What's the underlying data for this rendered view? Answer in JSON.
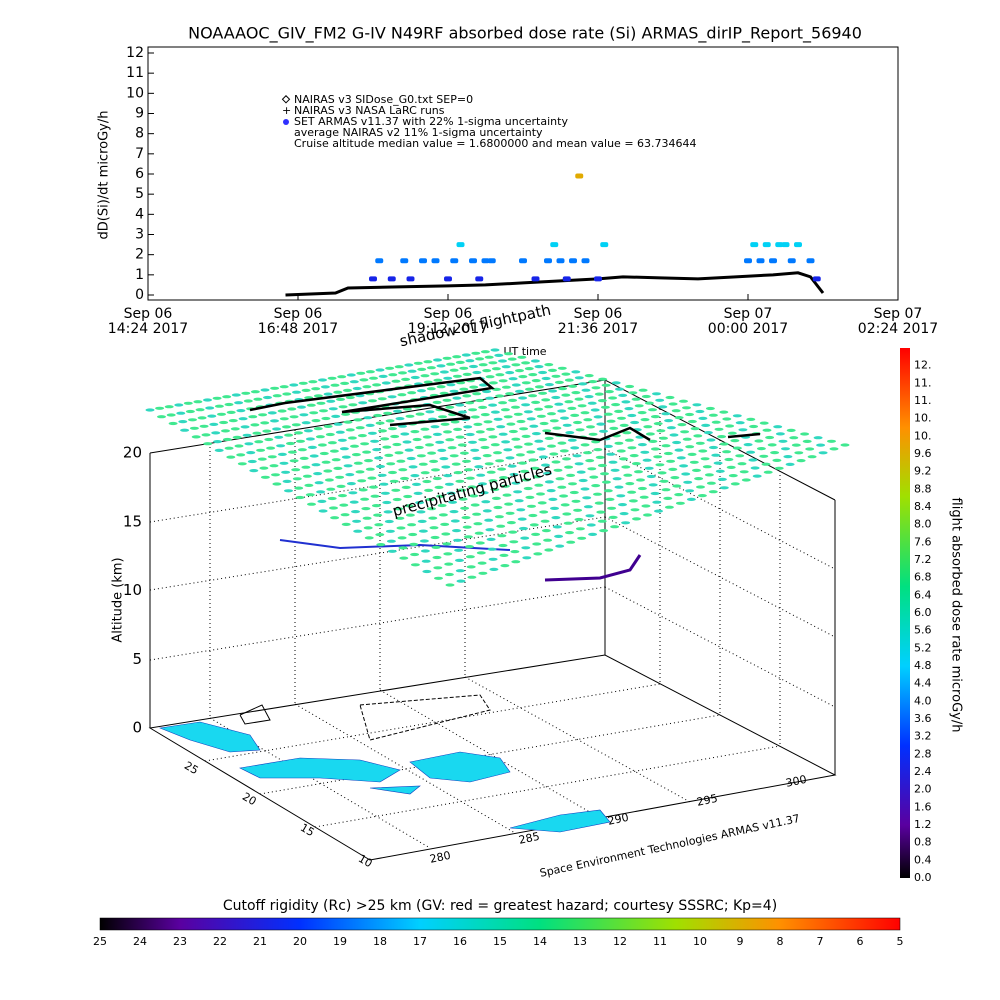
{
  "chart_data": [
    {
      "type": "line",
      "title": "NOAAAOC_GIV_FM2 G-IV   N49RF  absorbed dose rate (Si) ARMAS_dirIP_Report_56940",
      "y_label": "dD(Si)/dt microGy/h",
      "x_label": "UT time",
      "annotations": [
        "NAIRAS v3 SIDose_G0.txt SEP=0",
        "average NAIRAS v2 11% 1-sigma uncertainty",
        "Cruise altitude median value =  1.6800000 and mean value =  63.734644"
      ],
      "xlim": [
        14.4,
        26.4
      ],
      "xticks": [
        {
          "value": 14.4,
          "label": [
            "Sep 06",
            "14:24 2017"
          ]
        },
        {
          "value": 16.8,
          "label": [
            "Sep 06",
            "16:48 2017"
          ]
        },
        {
          "value": 19.2,
          "label": [
            "Sep 06",
            "19:12 2017"
          ]
        },
        {
          "value": 21.6,
          "label": [
            "Sep 06",
            "21:36 2017"
          ]
        },
        {
          "value": 24.0,
          "label": [
            "Sep 07",
            "00:00 2017"
          ]
        },
        {
          "value": 26.4,
          "label": [
            "Sep 07",
            "02:24 2017"
          ]
        }
      ],
      "ylim": [
        0,
        12
      ],
      "yticks": [
        0,
        1,
        2,
        3,
        4,
        5,
        6,
        7,
        8,
        9,
        10,
        11,
        12
      ],
      "series": [
        {
          "name": "NAIRAS v3 NASA LaRC runs",
          "color": "#000000",
          "x": [
            16.6,
            17.4,
            17.6,
            18.4,
            19.2,
            19.8,
            20.4,
            21.0,
            21.6,
            22.0,
            22.6,
            23.2,
            23.8,
            24.4,
            24.8,
            25.0,
            25.2
          ],
          "values": [
            0.0,
            0.1,
            0.35,
            0.4,
            0.45,
            0.5,
            0.6,
            0.7,
            0.8,
            0.9,
            0.85,
            0.8,
            0.9,
            1.0,
            1.1,
            0.9,
            0.1
          ]
        },
        {
          "name": "SET ARMAS v11.37 with 22% 1-sigma uncertainty",
          "color": "#3030ff",
          "x": [
            18.0,
            18.1,
            18.3,
            18.5,
            18.6,
            18.8,
            19.0,
            19.2,
            19.3,
            19.4,
            19.6,
            19.7,
            19.8,
            19.9,
            20.4,
            20.6,
            20.8,
            20.9,
            21.0,
            21.1,
            21.2,
            21.3,
            21.4,
            21.6,
            21.7,
            24.0,
            24.1,
            24.2,
            24.3,
            24.4,
            24.5,
            24.6,
            24.7,
            24.8,
            25.0,
            25.1
          ],
          "values": [
            0.8,
            1.7,
            0.8,
            1.7,
            0.8,
            1.7,
            1.7,
            0.8,
            1.7,
            2.5,
            1.7,
            0.8,
            1.7,
            1.7,
            1.7,
            0.8,
            1.7,
            2.5,
            1.7,
            0.8,
            1.7,
            5.9,
            1.7,
            0.8,
            2.5,
            1.7,
            2.5,
            1.7,
            2.5,
            1.7,
            2.5,
            2.5,
            1.7,
            2.5,
            1.7,
            0.8
          ]
        }
      ]
    },
    {
      "type": "surface3d",
      "z_label": "Altitude (km)",
      "zticks": [
        0,
        5,
        10,
        15,
        20
      ],
      "lat_ticks": [
        25,
        20,
        15,
        10
      ],
      "lon_ticks": [
        280,
        285,
        290,
        295,
        300
      ],
      "annotations": [
        "shadow of flightpath",
        "precipitating particles",
        "Space Environment Technologies ARMAS v11.37"
      ]
    },
    {
      "type": "colorbar",
      "label": "flight absorbed dose rate microGy/h",
      "ylim": [
        0,
        12
      ],
      "yticks": [
        {
          "value": 0,
          "label": "0.0"
        },
        0.4,
        0.8,
        1.2,
        1.6,
        {
          "value": 2,
          "label": "2.0"
        },
        2.4,
        2.8,
        3.2,
        3.6,
        {
          "value": 4,
          "label": "4.0"
        },
        4.4,
        4.8,
        5.2,
        5.6,
        {
          "value": 6,
          "label": "6.0"
        },
        6.4,
        6.8,
        7.2,
        7.6,
        {
          "value": 8,
          "label": "8.0"
        },
        8.4,
        8.8,
        9.2,
        9.6,
        {
          "value": 10,
          "label": "10."
        },
        {
          "value": 10.4,
          "label": "10."
        },
        {
          "value": 10.8,
          "label": "11."
        },
        {
          "value": 11.2,
          "label": "11."
        },
        {
          "value": 11.6,
          "label": "12."
        }
      ]
    },
    {
      "type": "colorbar",
      "title": "Cutoff rigidity (Rc) >25 km (GV: red = greatest hazard; courtesy SSSRC; Kp=4)",
      "xlim": [
        25,
        5
      ],
      "xticks": [
        25,
        24,
        23,
        22,
        21,
        20,
        19,
        18,
        17,
        16,
        15,
        14,
        13,
        12,
        11,
        10,
        9,
        8,
        7,
        6,
        5
      ]
    }
  ]
}
